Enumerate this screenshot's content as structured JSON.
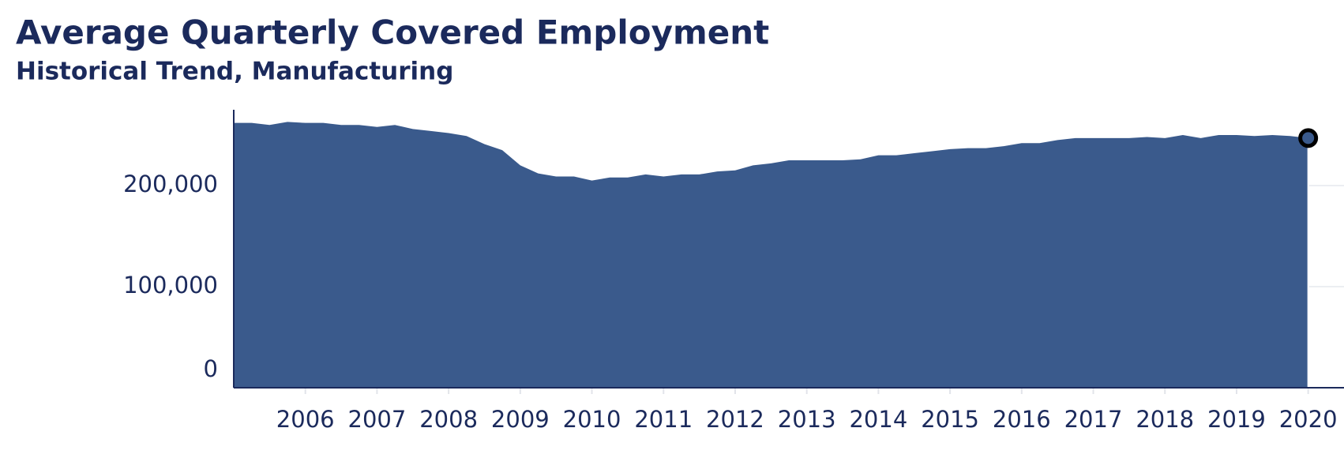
{
  "chart_data": {
    "type": "area",
    "title": "Average Quarterly Covered Employment",
    "subtitle": "Historical Trend, Manufacturing",
    "x": [
      2005,
      2005.25,
      2005.5,
      2005.75,
      2006,
      2006.25,
      2006.5,
      2006.75,
      2007,
      2007.25,
      2007.5,
      2007.75,
      2008,
      2008.25,
      2008.5,
      2008.75,
      2009,
      2009.25,
      2009.5,
      2009.75,
      2010,
      2010.25,
      2010.5,
      2010.75,
      2011,
      2011.25,
      2011.5,
      2011.75,
      2012,
      2012.25,
      2012.5,
      2012.75,
      2013,
      2013.25,
      2013.5,
      2013.75,
      2014,
      2014.25,
      2014.5,
      2014.75,
      2015,
      2015.25,
      2015.5,
      2015.75,
      2016,
      2016.25,
      2016.5,
      2016.75,
      2017,
      2017.25,
      2017.5,
      2017.75,
      2018,
      2018.25,
      2018.5,
      2018.75,
      2019,
      2019.25,
      2019.5,
      2019.75,
      2020
    ],
    "values": [
      262000,
      262000,
      260000,
      263000,
      262000,
      262000,
      260000,
      260000,
      258000,
      260000,
      256000,
      254000,
      252000,
      249000,
      241000,
      235000,
      220000,
      212000,
      209000,
      209000,
      205000,
      208000,
      208000,
      211000,
      209000,
      211000,
      211000,
      214000,
      215000,
      220000,
      222000,
      225000,
      225000,
      225000,
      225000,
      226000,
      230000,
      230000,
      232000,
      234000,
      236000,
      237000,
      237000,
      239000,
      242000,
      242000,
      245000,
      247000,
      247000,
      247000,
      247000,
      248000,
      247000,
      250000,
      247000,
      250000,
      250000,
      249000,
      250000,
      249000,
      247000
    ],
    "color": "#3a5a8c",
    "xlim": [
      2005,
      2020.5
    ],
    "xticks": [
      2006,
      2007,
      2008,
      2009,
      2010,
      2011,
      2012,
      2013,
      2014,
      2015,
      2016,
      2017,
      2018,
      2019,
      2020
    ],
    "ylim": [
      0,
      275000
    ],
    "yticks": [
      {
        "value": 0,
        "label": "0"
      },
      {
        "value": 100000,
        "label": "100,000"
      },
      {
        "value": 200000,
        "label": "200,000"
      }
    ],
    "grid": true
  }
}
